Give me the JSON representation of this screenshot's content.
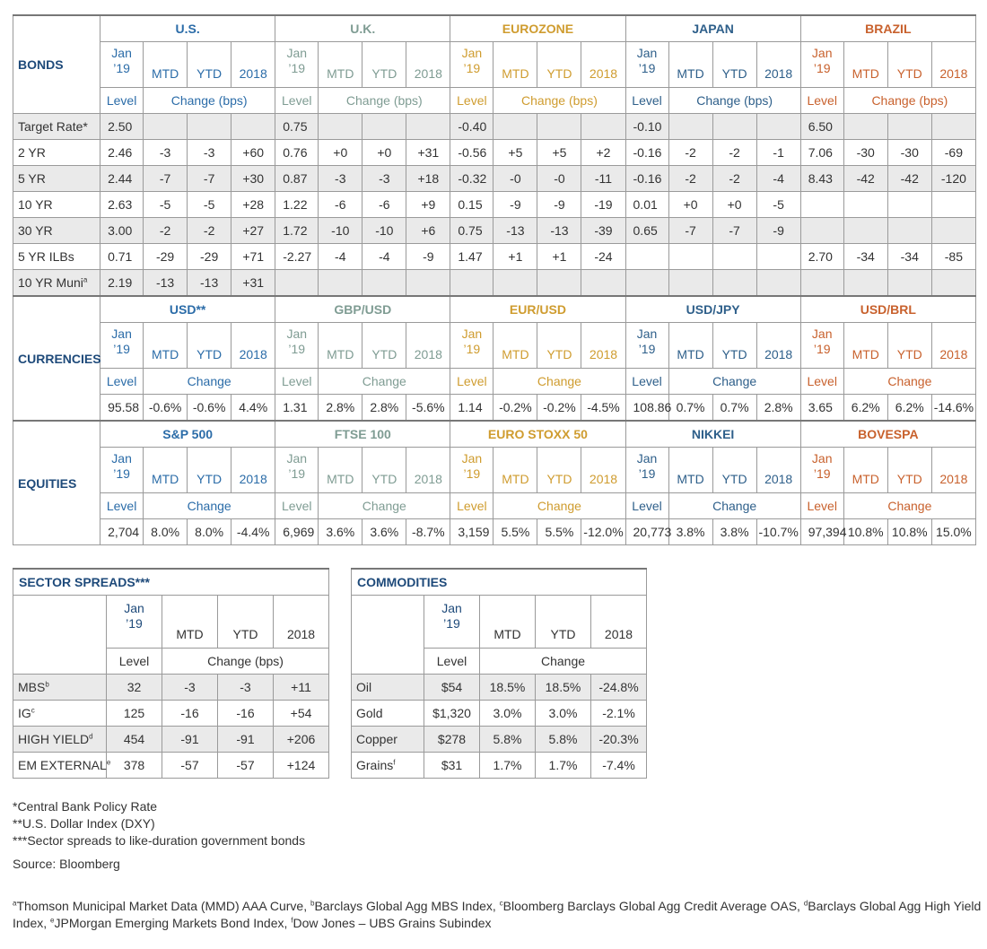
{
  "colors": {
    "us": "#2b6ca8",
    "uk": "#7f9c93",
    "eurozone": "#cf9c2f",
    "japan": "#2e5f8a",
    "brazil": "#c8612d",
    "section_title": "#1e4a7a",
    "shaded_row": "#eaeaea"
  },
  "labels": {
    "jan_line1": "Jan",
    "jan_line2": "’19",
    "mtd": "MTD",
    "ytd": "YTD",
    "y2018": "2018",
    "level": "Level",
    "change_bps": "Change (bps)",
    "change": "Change"
  },
  "bonds": {
    "title": "BONDS",
    "regions": [
      "U.S.",
      "U.K.",
      "EUROZONE",
      "JAPAN",
      "BRAZIL"
    ],
    "rows": [
      {
        "label": "Target Rate*",
        "shaded": true,
        "cells": [
          "2.50",
          "",
          "",
          "",
          "0.75",
          "",
          "",
          "",
          "-0.40",
          "",
          "",
          "",
          "-0.10",
          "",
          "",
          "",
          "6.50",
          "",
          "",
          ""
        ]
      },
      {
        "label": "2 YR",
        "cells": [
          "2.46",
          "-3",
          "-3",
          "+60",
          "0.76",
          "+0",
          "+0",
          "+31",
          "-0.56",
          "+5",
          "+5",
          "+2",
          "-0.16",
          "-2",
          "-2",
          "-1",
          "7.06",
          "-30",
          "-30",
          "-69"
        ]
      },
      {
        "label": "5 YR",
        "shaded": true,
        "cells": [
          "2.44",
          "-7",
          "-7",
          "+30",
          "0.87",
          "-3",
          "-3",
          "+18",
          "-0.32",
          "-0",
          "-0",
          "-11",
          "-0.16",
          "-2",
          "-2",
          "-4",
          "8.43",
          "-42",
          "-42",
          "-120"
        ]
      },
      {
        "label": "10 YR",
        "cells": [
          "2.63",
          "-5",
          "-5",
          "+28",
          "1.22",
          "-6",
          "-6",
          "+9",
          "0.15",
          "-9",
          "-9",
          "-19",
          "0.01",
          "+0",
          "+0",
          "-5",
          "",
          "",
          "",
          ""
        ]
      },
      {
        "label": "30 YR",
        "shaded": true,
        "cells": [
          "3.00",
          "-2",
          "-2",
          "+27",
          "1.72",
          "-10",
          "-10",
          "+6",
          "0.75",
          "-13",
          "-13",
          "-39",
          "0.65",
          "-7",
          "-7",
          "-9",
          "",
          "",
          "",
          ""
        ]
      },
      {
        "label": "5 YR ILBs",
        "cells": [
          "0.71",
          "-29",
          "-29",
          "+71",
          "-2.27",
          "-4",
          "-4",
          "-9",
          "1.47",
          "+1",
          "+1",
          "-24",
          "",
          "",
          "",
          "",
          "2.70",
          "-34",
          "-34",
          "-85"
        ]
      },
      {
        "label": "10 YR Muni",
        "sup": "a",
        "shaded": true,
        "cells": [
          "2.19",
          "-13",
          "-13",
          "+31",
          "",
          "",
          "",
          "",
          "",
          "",
          "",
          "",
          "",
          "",
          "",
          "",
          "",
          "",
          "",
          ""
        ]
      }
    ]
  },
  "currencies": {
    "title": "CURRENCIES",
    "regions": [
      "USD**",
      "GBP/USD",
      "EUR/USD",
      "USD/JPY",
      "USD/BRL"
    ],
    "cells": [
      "95.58",
      "-0.6%",
      "-0.6%",
      "4.4%",
      "1.31",
      "2.8%",
      "2.8%",
      "-5.6%",
      "1.14",
      "-0.2%",
      "-0.2%",
      "-4.5%",
      "108.86",
      "0.7%",
      "0.7%",
      "2.8%",
      "3.65",
      "6.2%",
      "6.2%",
      "-14.6%"
    ]
  },
  "equities": {
    "title": "EQUITIES",
    "regions": [
      "S&P 500",
      "FTSE 100",
      "EURO STOXX 50",
      "NIKKEI",
      "BOVESPA"
    ],
    "cells": [
      "2,704",
      "8.0%",
      "8.0%",
      "-4.4%",
      "6,969",
      "3.6%",
      "3.6%",
      "-8.7%",
      "3,159",
      "5.5%",
      "5.5%",
      "-12.0%",
      "20,773",
      "3.8%",
      "3.8%",
      "-10.7%",
      "97,394",
      "10.8%",
      "10.8%",
      "15.0%"
    ]
  },
  "sector_spreads": {
    "title": "SECTOR SPREADS***",
    "rows": [
      {
        "label": "MBS",
        "sup": "b",
        "shaded": true,
        "cells": [
          "32",
          "-3",
          "-3",
          "+11"
        ]
      },
      {
        "label": "IG",
        "sup": "c",
        "cells": [
          "125",
          "-16",
          "-16",
          "+54"
        ]
      },
      {
        "label": "HIGH YIELD",
        "sup": "d",
        "shaded": true,
        "cells": [
          "454",
          "-91",
          "-91",
          "+206"
        ]
      },
      {
        "label": "EM EXTERNAL",
        "sup": "e",
        "cells": [
          "378",
          "-57",
          "-57",
          "+124"
        ]
      }
    ]
  },
  "commodities": {
    "title": "COMMODITIES",
    "rows": [
      {
        "label": "Oil",
        "shaded": true,
        "cells": [
          "$54",
          "18.5%",
          "18.5%",
          "-24.8%"
        ]
      },
      {
        "label": "Gold",
        "cells": [
          "$1,320",
          "3.0%",
          "3.0%",
          "-2.1%"
        ]
      },
      {
        "label": "Copper",
        "shaded": true,
        "cells": [
          "$278",
          "5.8%",
          "5.8%",
          "-20.3%"
        ]
      },
      {
        "label": "Grains",
        "sup": "f",
        "cells": [
          "$31",
          "1.7%",
          "1.7%",
          "-7.4%"
        ]
      }
    ]
  },
  "notes": [
    "*Central Bank Policy Rate",
    "**U.S. Dollar Index (DXY)",
    "***Sector spreads to like-duration government bonds"
  ],
  "source": "Source: Bloomberg",
  "footnotes": [
    {
      "sup": "a",
      "text": "Thomson Municipal Market Data (MMD) AAA Curve, "
    },
    {
      "sup": "b",
      "text": "Barclays Global Agg MBS Index, "
    },
    {
      "sup": "c",
      "text": "Bloomberg Barclays Global Agg Credit Average OAS, "
    },
    {
      "sup": "d",
      "text": "Barclays Global Agg High Yield Index, "
    },
    {
      "sup": "e",
      "text": "JPMorgan Emerging Markets Bond Index, "
    },
    {
      "sup": "f",
      "text": "Dow Jones – UBS Grains Subindex"
    }
  ]
}
